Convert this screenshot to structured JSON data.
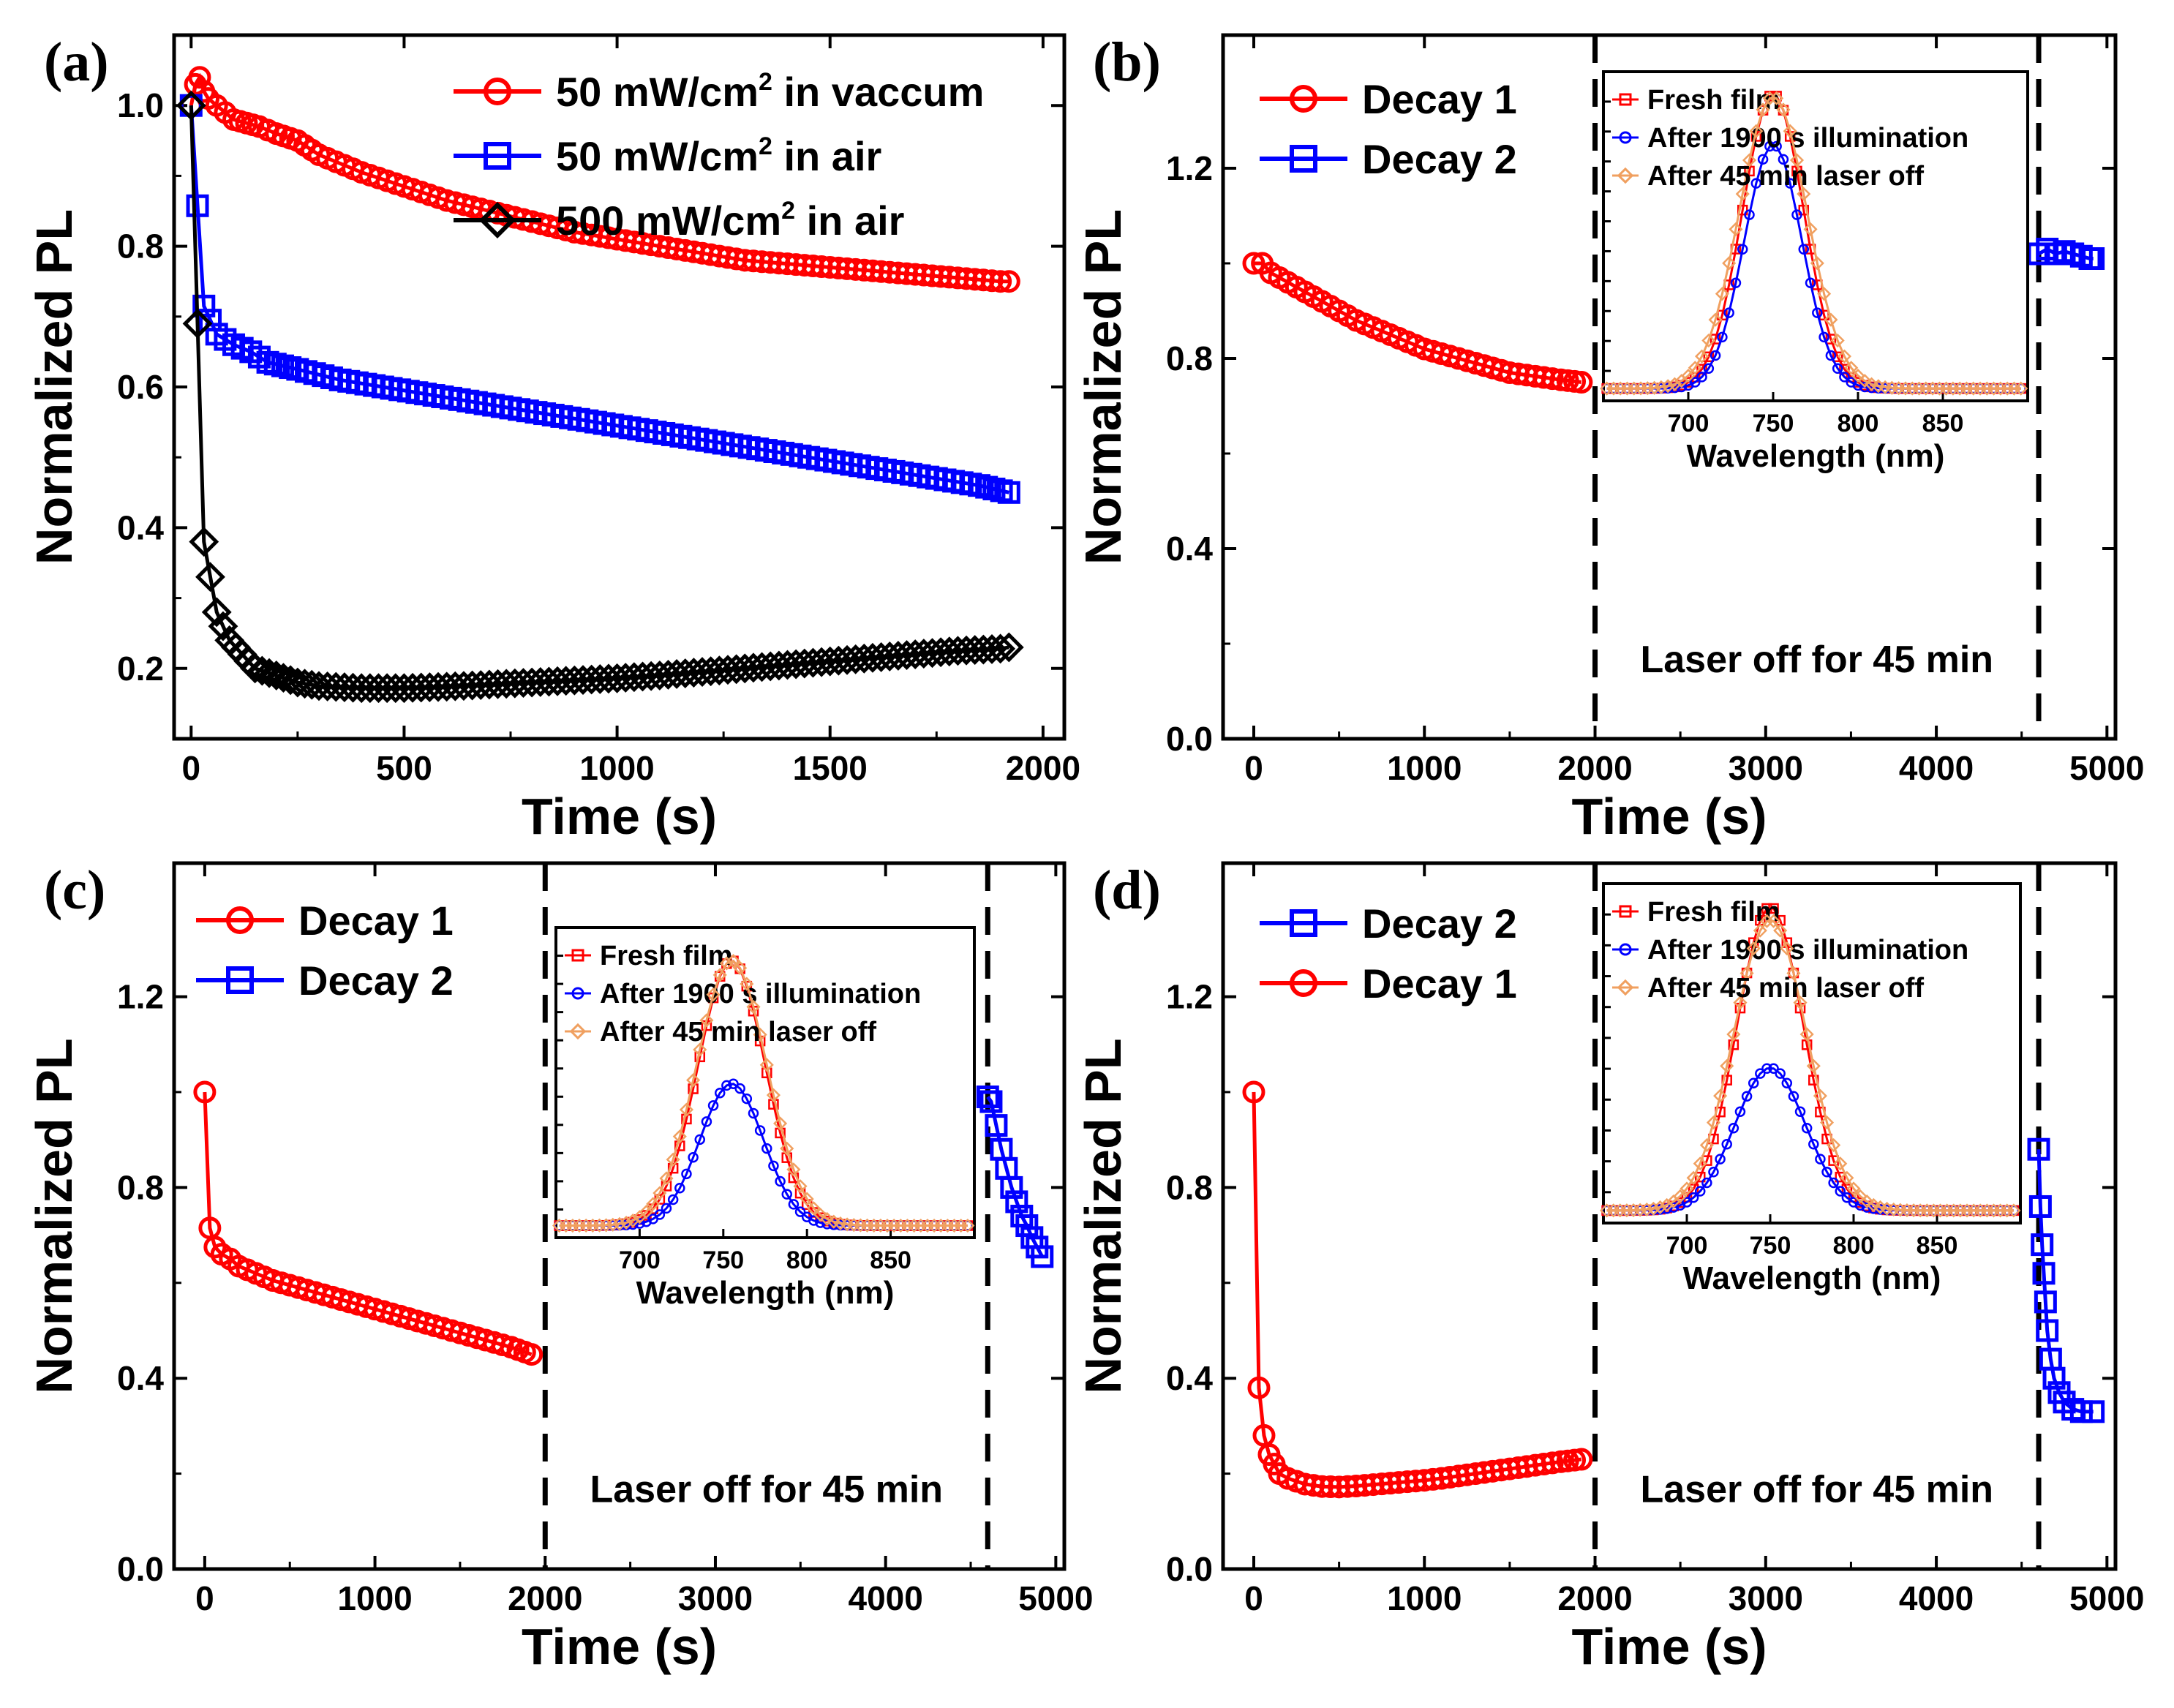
{
  "figure": {
    "description_free": true
  },
  "chart_data": [
    {
      "id": "a",
      "type": "line",
      "panel_label": "(a)",
      "xlabel": "Time (s)",
      "ylabel": "Normalized PL",
      "xlim": [
        -40,
        2050
      ],
      "ylim": [
        0.1,
        1.1
      ],
      "xticks": [
        0,
        500,
        1000,
        1500,
        2000
      ],
      "yticks": [
        0.2,
        0.4,
        0.6,
        0.8,
        1.0
      ],
      "ytick_decimals": 1,
      "legend_position": "top-right",
      "vlines": [],
      "annotations": [],
      "series": [
        {
          "name": "50 mW/cm² in vaccum",
          "legend_base": "50 mW/cm",
          "legend_sup": "2",
          "legend_rest": " in vaccum",
          "color": "#ff0000",
          "marker": "circle",
          "x": [
            0,
            10,
            20,
            30,
            40,
            60,
            80,
            100,
            130,
            160,
            200,
            250,
            300,
            400,
            500,
            600,
            700,
            800,
            900,
            1000,
            1100,
            1200,
            1300,
            1400,
            1500,
            1600,
            1700,
            1800,
            1900,
            1920
          ],
          "y": [
            1.0,
            1.03,
            1.04,
            1.02,
            1.01,
            1.0,
            0.99,
            0.98,
            0.975,
            0.97,
            0.96,
            0.95,
            0.93,
            0.905,
            0.885,
            0.865,
            0.85,
            0.835,
            0.82,
            0.81,
            0.8,
            0.79,
            0.78,
            0.775,
            0.77,
            0.765,
            0.76,
            0.755,
            0.75,
            0.75
          ]
        },
        {
          "name": "50 mW/cm² in air",
          "legend_base": "50 mW/cm",
          "legend_sup": "2",
          "legend_rest": " in air",
          "color": "#0000ff",
          "marker": "square",
          "x": [
            0,
            30,
            60,
            100,
            140,
            180,
            250,
            350,
            450,
            550,
            650,
            750,
            850,
            950,
            1050,
            1150,
            1250,
            1350,
            1450,
            1550,
            1650,
            1750,
            1850,
            1920
          ],
          "y": [
            1.0,
            0.715,
            0.675,
            0.66,
            0.65,
            0.635,
            0.625,
            0.61,
            0.6,
            0.59,
            0.58,
            0.57,
            0.56,
            0.55,
            0.54,
            0.53,
            0.52,
            0.51,
            0.5,
            0.49,
            0.48,
            0.47,
            0.46,
            0.45
          ]
        },
        {
          "name": "500 mW/cm² in air",
          "legend_base": "500 mW/cm",
          "legend_sup": "2",
          "legend_rest": " in air",
          "color": "#000000",
          "marker": "diamond",
          "x": [
            0,
            30,
            60,
            90,
            120,
            150,
            200,
            250,
            300,
            400,
            500,
            600,
            700,
            800,
            900,
            1000,
            1100,
            1200,
            1300,
            1400,
            1500,
            1600,
            1700,
            1800,
            1900,
            1920
          ],
          "y": [
            1.0,
            0.38,
            0.28,
            0.24,
            0.22,
            0.2,
            0.19,
            0.18,
            0.175,
            0.172,
            0.172,
            0.174,
            0.177,
            0.18,
            0.183,
            0.186,
            0.19,
            0.195,
            0.2,
            0.205,
            0.21,
            0.215,
            0.22,
            0.225,
            0.228,
            0.23
          ]
        }
      ]
    },
    {
      "id": "b",
      "type": "line",
      "panel_label": "(b)",
      "xlabel": "Time (s)",
      "ylabel": "Normalized PL",
      "xlim": [
        -180,
        5050
      ],
      "ylim": [
        0.0,
        1.48
      ],
      "xticks": [
        0,
        1000,
        2000,
        3000,
        4000,
        5000
      ],
      "yticks": [
        0.0,
        0.4,
        0.8,
        1.2
      ],
      "ytick_decimals": 1,
      "legend_position": "top-left",
      "vlines": [
        2000,
        4600
      ],
      "annotations": [
        {
          "text": "Laser off for 45 min",
          "x": 3300,
          "y": 0.14
        }
      ],
      "series": [
        {
          "name": "Decay 1",
          "legend_base": "Decay 1",
          "legend_sup": "",
          "legend_rest": "",
          "color": "#ff0000",
          "marker": "circle",
          "x": [
            0,
            50,
            100,
            200,
            300,
            400,
            500,
            600,
            700,
            800,
            900,
            1000,
            1100,
            1200,
            1300,
            1400,
            1500,
            1600,
            1700,
            1800,
            1920
          ],
          "y": [
            1.0,
            1.0,
            0.98,
            0.96,
            0.94,
            0.92,
            0.9,
            0.88,
            0.865,
            0.85,
            0.835,
            0.82,
            0.81,
            0.8,
            0.79,
            0.78,
            0.77,
            0.765,
            0.76,
            0.755,
            0.75
          ]
        },
        {
          "name": "Decay 2",
          "legend_base": "Decay 2",
          "legend_sup": "",
          "legend_rest": "",
          "color": "#0000ff",
          "marker": "square",
          "x": [
            4600,
            4650,
            4700,
            4750,
            4800,
            4850,
            4900,
            4920
          ],
          "y": [
            1.02,
            1.03,
            1.02,
            1.025,
            1.02,
            1.015,
            1.01,
            1.01
          ]
        }
      ],
      "inset": {
        "xlabel": "Wavelength (nm)",
        "xlim": [
          650,
          900
        ],
        "ylim": [
          0,
          1.28
        ],
        "xticks": [
          700,
          750,
          800,
          850
        ],
        "series": [
          {
            "name": "Fresh film",
            "color": "#ff0000",
            "marker": "square",
            "peak": 750,
            "amplitude": 1.17,
            "sigma": 18
          },
          {
            "name": "After 1900 s illumination",
            "color": "#0000ff",
            "marker": "circle",
            "peak": 750,
            "amplitude": 0.97,
            "sigma": 17
          },
          {
            "name": "After 45 min laser off",
            "color": "#f0a060",
            "marker": "diamond",
            "peak": 750,
            "amplitude": 1.16,
            "sigma": 20
          }
        ]
      }
    },
    {
      "id": "c",
      "type": "line",
      "panel_label": "(c)",
      "xlabel": "Time (s)",
      "ylabel": "Normalized PL",
      "xlim": [
        -180,
        5050
      ],
      "ylim": [
        0.0,
        1.48
      ],
      "xticks": [
        0,
        1000,
        2000,
        3000,
        4000,
        5000
      ],
      "yticks": [
        0.0,
        0.4,
        0.8,
        1.2
      ],
      "ytick_decimals": 1,
      "legend_position": "top-left",
      "vlines": [
        2000,
        4600
      ],
      "annotations": [
        {
          "text": "Laser off for 45 min",
          "x": 3300,
          "y": 0.14
        }
      ],
      "series": [
        {
          "name": "Decay 1",
          "legend_base": "Decay 1",
          "legend_sup": "",
          "legend_rest": "",
          "color": "#ff0000",
          "marker": "circle",
          "x": [
            0,
            30,
            60,
            100,
            150,
            200,
            300,
            400,
            500,
            600,
            700,
            800,
            900,
            1000,
            1100,
            1200,
            1300,
            1400,
            1500,
            1600,
            1700,
            1800,
            1920
          ],
          "y": [
            1.0,
            0.715,
            0.675,
            0.66,
            0.65,
            0.635,
            0.62,
            0.605,
            0.595,
            0.585,
            0.575,
            0.565,
            0.555,
            0.545,
            0.535,
            0.525,
            0.515,
            0.505,
            0.495,
            0.485,
            0.475,
            0.465,
            0.45
          ]
        },
        {
          "name": "Decay 2",
          "legend_base": "Decay 2",
          "legend_sup": "",
          "legend_rest": "",
          "color": "#0000ff",
          "marker": "square",
          "x": [
            4600,
            4620,
            4650,
            4680,
            4710,
            4740,
            4770,
            4800,
            4830,
            4860,
            4890,
            4920
          ],
          "y": [
            0.99,
            0.98,
            0.93,
            0.88,
            0.84,
            0.8,
            0.77,
            0.74,
            0.72,
            0.695,
            0.675,
            0.655
          ]
        }
      ],
      "inset": {
        "xlabel": "Wavelength (nm)",
        "xlim": [
          650,
          900
        ],
        "ylim": [
          0,
          1.28
        ],
        "xticks": [
          700,
          750,
          800,
          850
        ],
        "series": [
          {
            "name": "Fresh film",
            "color": "#ff0000",
            "marker": "square",
            "peak": 755,
            "amplitude": 1.12,
            "sigma": 20
          },
          {
            "name": "After 1900 s illumination",
            "color": "#0000ff",
            "marker": "circle",
            "peak": 755,
            "amplitude": 0.6,
            "sigma": 19
          },
          {
            "name": "After 45 min laser off",
            "color": "#f0a060",
            "marker": "diamond",
            "peak": 755,
            "amplitude": 1.12,
            "sigma": 21
          }
        ]
      }
    },
    {
      "id": "d",
      "type": "line",
      "panel_label": "(d)",
      "xlabel": "Time (s)",
      "ylabel": "Normalized PL",
      "xlim": [
        -180,
        5050
      ],
      "ylim": [
        0.0,
        1.48
      ],
      "xticks": [
        0,
        1000,
        2000,
        3000,
        4000,
        5000
      ],
      "yticks": [
        0.0,
        0.4,
        0.8,
        1.2
      ],
      "ytick_decimals": 1,
      "legend_position": "top-left",
      "vlines": [
        2000,
        4600
      ],
      "annotations": [
        {
          "text": "Laser off for 45 min",
          "x": 3300,
          "y": 0.14
        }
      ],
      "series": [
        {
          "name": "Decay 2",
          "legend_base": "Decay 2",
          "legend_sup": "",
          "legend_rest": "",
          "color": "#0000ff",
          "marker": "square",
          "x": [
            4600,
            4610,
            4620,
            4630,
            4640,
            4650,
            4670,
            4690,
            4720,
            4750,
            4800,
            4850,
            4920
          ],
          "y": [
            0.88,
            0.76,
            0.68,
            0.62,
            0.56,
            0.5,
            0.44,
            0.4,
            0.37,
            0.35,
            0.335,
            0.33,
            0.33
          ]
        },
        {
          "name": "Decay 1",
          "legend_base": "Decay 1",
          "legend_sup": "",
          "legend_rest": "",
          "color": "#ff0000",
          "marker": "circle",
          "x": [
            0,
            30,
            60,
            90,
            120,
            150,
            200,
            300,
            400,
            500,
            600,
            700,
            800,
            900,
            1000,
            1100,
            1200,
            1300,
            1400,
            1500,
            1600,
            1700,
            1800,
            1920
          ],
          "y": [
            1.0,
            0.38,
            0.28,
            0.24,
            0.22,
            0.2,
            0.19,
            0.178,
            0.173,
            0.172,
            0.174,
            0.177,
            0.18,
            0.183,
            0.186,
            0.19,
            0.195,
            0.2,
            0.205,
            0.21,
            0.215,
            0.22,
            0.225,
            0.23
          ]
        }
      ],
      "inset": {
        "xlabel": "Wavelength (nm)",
        "xlim": [
          650,
          900
        ],
        "ylim": [
          0,
          1.28
        ],
        "xticks": [
          700,
          750,
          800,
          850
        ],
        "series": [
          {
            "name": "Fresh film",
            "color": "#ff0000",
            "marker": "square",
            "peak": 750,
            "amplitude": 1.17,
            "sigma": 20
          },
          {
            "name": "After 1900 s illumination",
            "color": "#0000ff",
            "marker": "circle",
            "peak": 750,
            "amplitude": 0.55,
            "sigma": 21
          },
          {
            "name": "After 45 min laser off",
            "color": "#f0a060",
            "marker": "diamond",
            "peak": 750,
            "amplitude": 1.12,
            "sigma": 22
          }
        ]
      }
    }
  ]
}
